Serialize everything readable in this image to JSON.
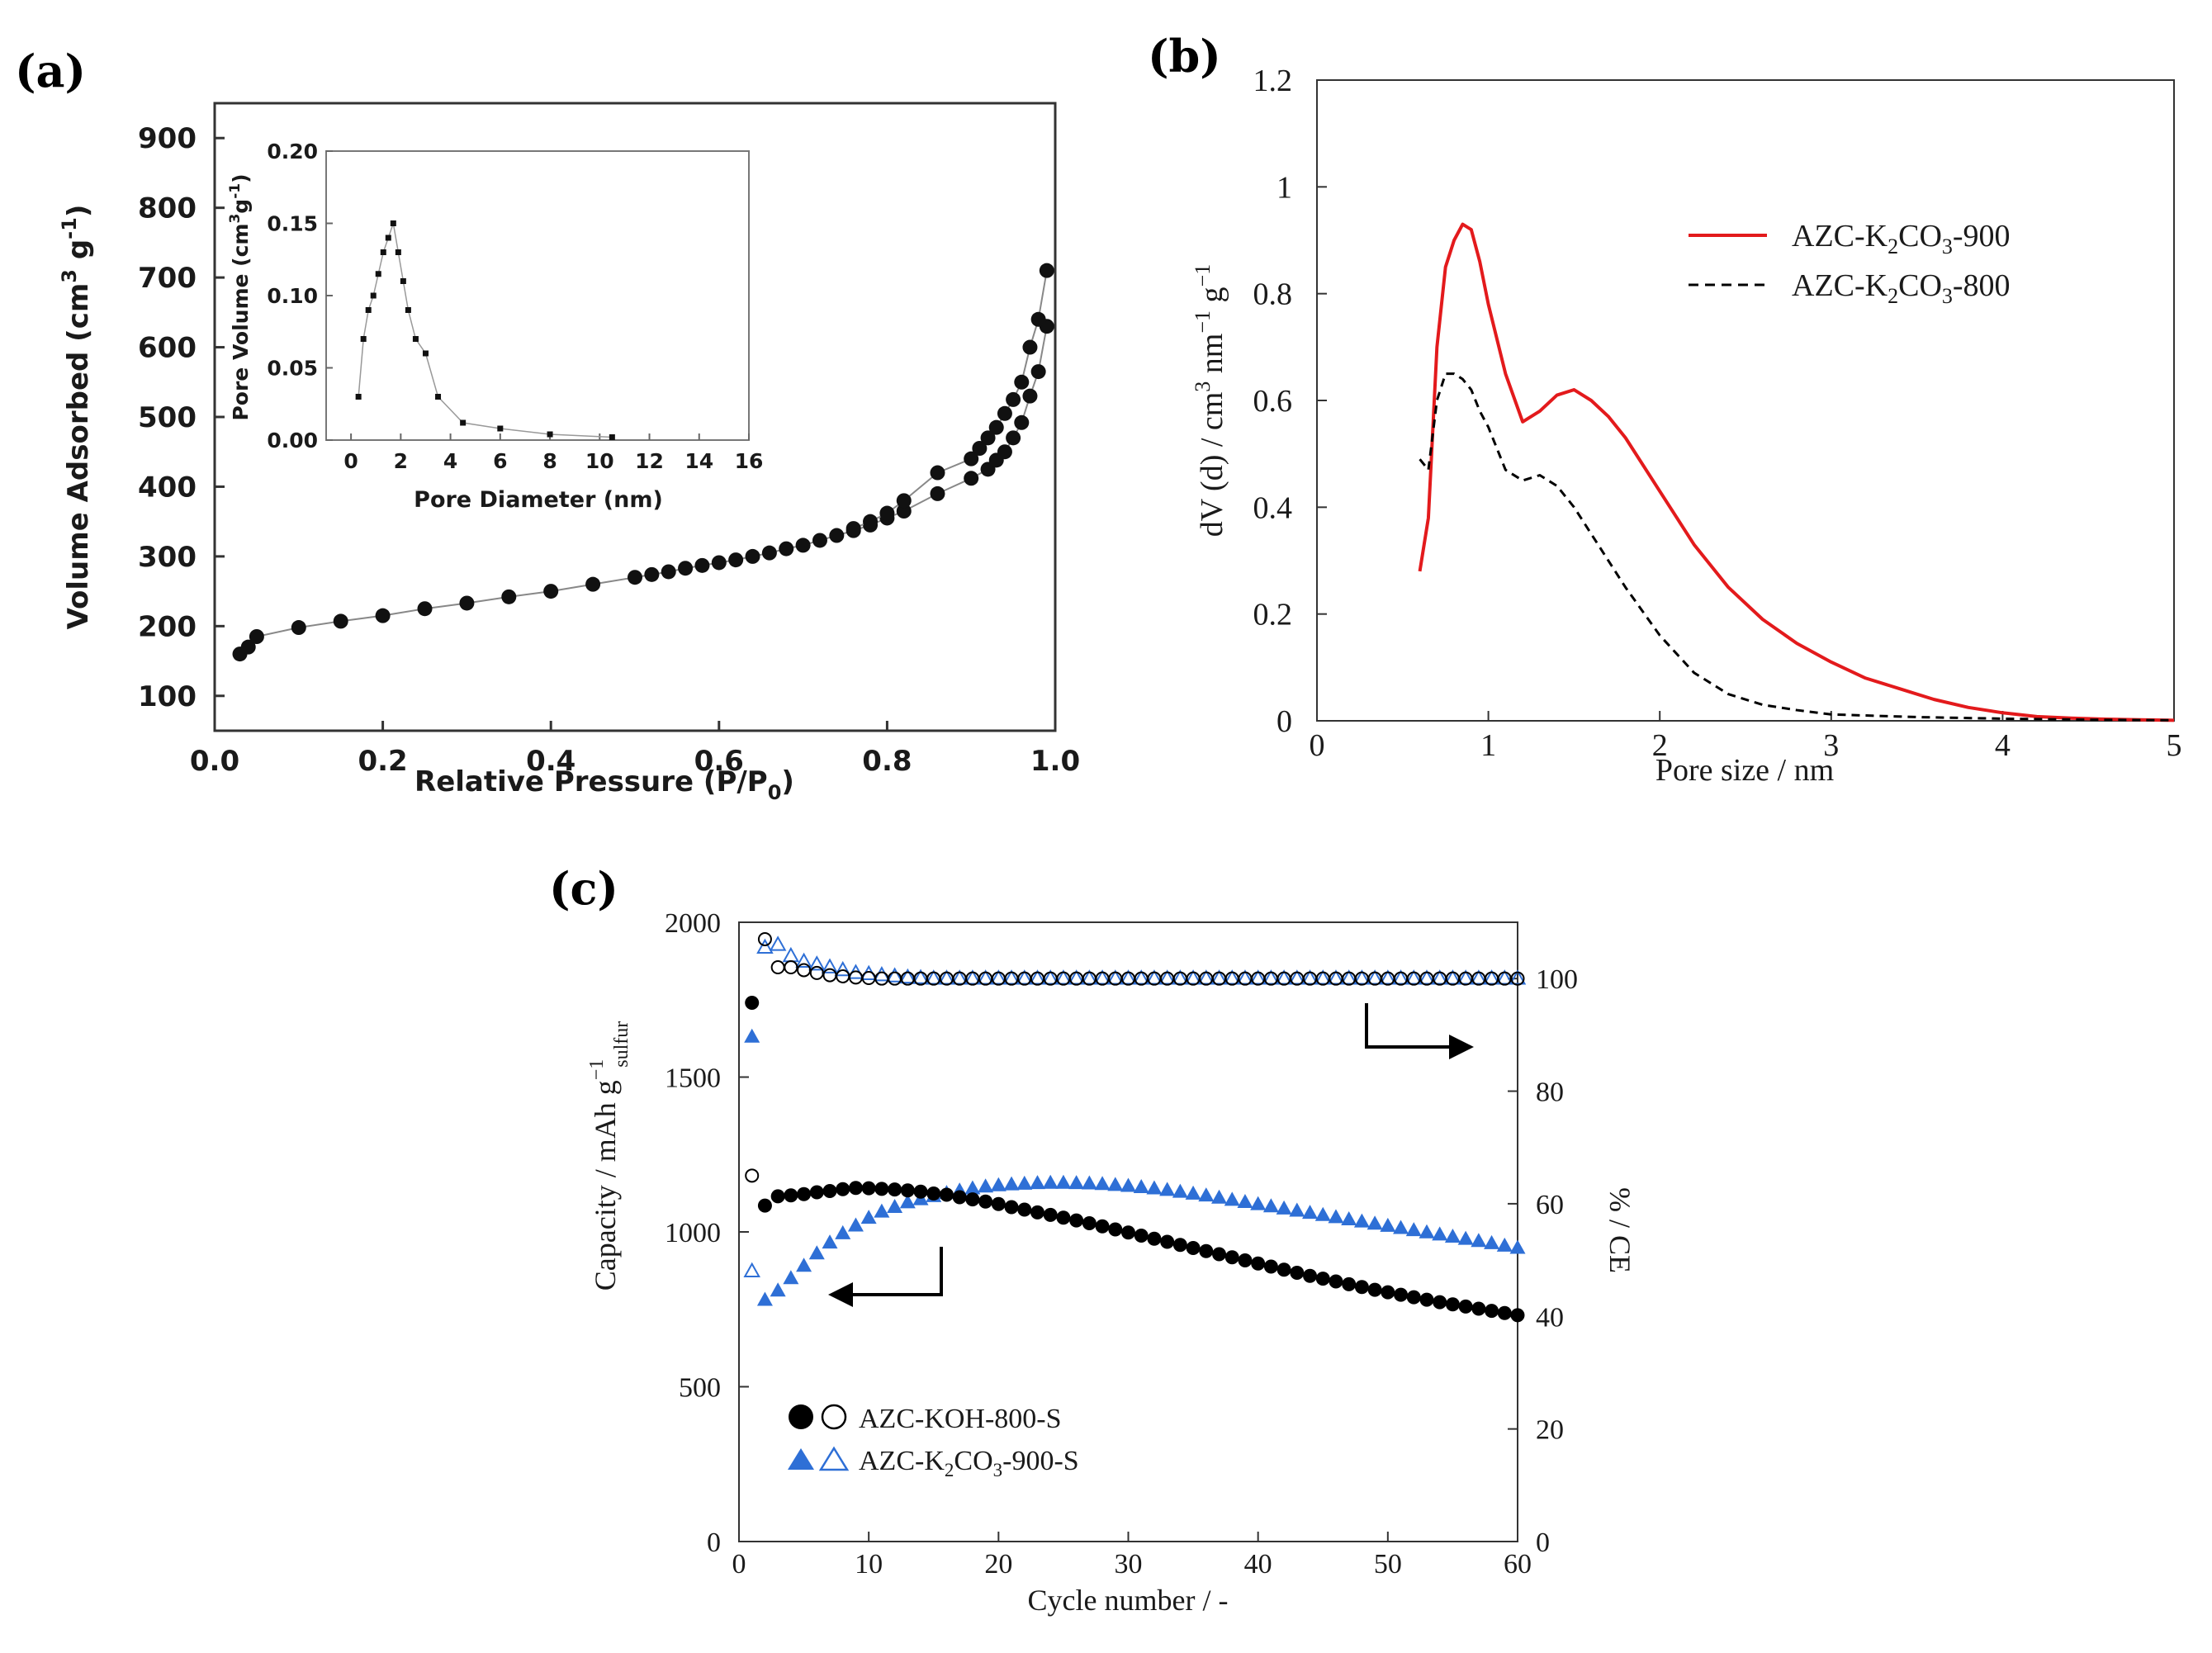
{
  "chart_data": [
    {
      "panel": "(a)",
      "type": "scatter",
      "xlabel": "Relative Pressure (P/P0)",
      "ylabel": "Volume Adsorbed (cm3 g-1)",
      "xlim": [
        0,
        1.0
      ],
      "ylim": [
        50,
        950
      ],
      "xticks": [
        0.0,
        0.2,
        0.4,
        0.6,
        0.8,
        1.0
      ],
      "xtick_labels": [
        "0.0",
        "0.2",
        "0.4",
        "0.6",
        "0.8",
        "1.0"
      ],
      "yticks": [
        100,
        200,
        300,
        400,
        500,
        600,
        700,
        800,
        900
      ],
      "series": [
        {
          "name": "adsorption",
          "x": [
            0.03,
            0.04,
            0.05,
            0.1,
            0.15,
            0.2,
            0.25,
            0.3,
            0.35,
            0.4,
            0.45,
            0.5,
            0.52,
            0.54,
            0.56,
            0.58,
            0.6,
            0.62,
            0.64,
            0.66,
            0.68,
            0.7,
            0.72,
            0.74,
            0.76,
            0.78,
            0.8,
            0.82,
            0.86,
            0.9,
            0.92,
            0.93,
            0.94,
            0.95,
            0.96,
            0.97,
            0.98,
            0.99
          ],
          "y": [
            160,
            170,
            185,
            198,
            207,
            215,
            225,
            233,
            242,
            250,
            260,
            270,
            274,
            278,
            283,
            287,
            291,
            295,
            300,
            305,
            311,
            316,
            323,
            330,
            337,
            345,
            355,
            365,
            390,
            412,
            425,
            438,
            450,
            470,
            492,
            530,
            565,
            630
          ]
        },
        {
          "name": "desorption",
          "x": [
            0.99,
            0.98,
            0.97,
            0.96,
            0.95,
            0.94,
            0.93,
            0.92,
            0.91,
            0.9,
            0.86,
            0.82,
            0.8,
            0.78,
            0.76
          ],
          "y": [
            710,
            640,
            600,
            550,
            525,
            505,
            485,
            470,
            455,
            440,
            420,
            380,
            362,
            350,
            340
          ]
        }
      ],
      "inset": {
        "type": "line",
        "xlabel": "Pore Diameter (nm)",
        "ylabel": "Pore Volume (cm3g-1)",
        "xlim": [
          -1,
          16
        ],
        "ylim": [
          0,
          0.2
        ],
        "xticks": [
          0,
          2,
          4,
          6,
          8,
          10,
          12,
          14,
          16
        ],
        "yticks": [
          0.0,
          0.05,
          0.1,
          0.15,
          0.2
        ],
        "ytick_labels": [
          "0.00",
          "0.05",
          "0.10",
          "0.15",
          "0.20"
        ],
        "x": [
          0.3,
          0.5,
          0.7,
          0.9,
          1.1,
          1.3,
          1.5,
          1.7,
          1.9,
          2.1,
          2.3,
          2.6,
          3.0,
          3.5,
          4.5,
          6.0,
          8.0,
          10.5
        ],
        "y": [
          0.03,
          0.07,
          0.09,
          0.1,
          0.115,
          0.13,
          0.14,
          0.15,
          0.13,
          0.11,
          0.09,
          0.07,
          0.06,
          0.03,
          0.012,
          0.008,
          0.004,
          0.002
        ]
      }
    },
    {
      "panel": "(b)",
      "type": "line",
      "xlabel": "Pore size / nm",
      "ylabel": "dV (d) / cm3 nm-1 g-1",
      "xlim": [
        0,
        5
      ],
      "ylim": [
        0,
        1.2
      ],
      "xticks": [
        0,
        1,
        2,
        3,
        4,
        5
      ],
      "yticks": [
        0,
        0.2,
        0.4,
        0.6,
        0.8,
        1.0,
        1.2
      ],
      "ytick_labels": [
        "0",
        "0.2",
        "0.4",
        "0.6",
        "0.8",
        "1",
        "1.2"
      ],
      "series": [
        {
          "name": "AZC-K2CO3-900",
          "color": "#e31a1c",
          "style": "solid",
          "x": [
            0.6,
            0.65,
            0.7,
            0.75,
            0.8,
            0.85,
            0.9,
            0.95,
            1.0,
            1.1,
            1.2,
            1.3,
            1.4,
            1.5,
            1.6,
            1.7,
            1.8,
            2.0,
            2.2,
            2.4,
            2.6,
            2.8,
            3.0,
            3.2,
            3.4,
            3.6,
            3.8,
            4.0,
            4.2,
            4.4,
            4.6,
            4.8,
            5.0
          ],
          "y": [
            0.28,
            0.38,
            0.7,
            0.85,
            0.9,
            0.93,
            0.92,
            0.86,
            0.78,
            0.65,
            0.56,
            0.58,
            0.61,
            0.62,
            0.6,
            0.57,
            0.53,
            0.43,
            0.33,
            0.25,
            0.19,
            0.145,
            0.11,
            0.08,
            0.06,
            0.04,
            0.025,
            0.015,
            0.008,
            0.005,
            0.003,
            0.002,
            0.001
          ]
        },
        {
          "name": "AZC-K2CO3-800",
          "color": "#000000",
          "style": "dashed",
          "x": [
            0.6,
            0.65,
            0.7,
            0.75,
            0.8,
            0.85,
            0.9,
            0.95,
            1.0,
            1.1,
            1.2,
            1.3,
            1.4,
            1.5,
            1.6,
            1.8,
            2.0,
            2.2,
            2.4,
            2.6,
            2.8,
            3.0,
            3.5,
            4.0,
            4.5,
            5.0
          ],
          "y": [
            0.49,
            0.47,
            0.6,
            0.65,
            0.65,
            0.64,
            0.62,
            0.58,
            0.55,
            0.47,
            0.45,
            0.46,
            0.44,
            0.4,
            0.35,
            0.25,
            0.16,
            0.09,
            0.05,
            0.03,
            0.02,
            0.012,
            0.007,
            0.004,
            0.002,
            0.001
          ]
        }
      ]
    },
    {
      "panel": "(c)",
      "type": "scatter",
      "xlabel": "Cycle number / -",
      "ylabel_left": "Capacity / mAh g-1 sulfur",
      "ylabel_right": "CE / %",
      "xlim": [
        0,
        60
      ],
      "ylim_left": [
        0,
        2000
      ],
      "ylim_right": [
        0,
        110
      ],
      "xticks": [
        0,
        10,
        20,
        30,
        40,
        50,
        60
      ],
      "yticks_left": [
        0,
        500,
        1000,
        1500,
        2000
      ],
      "yticks_right": [
        0,
        20,
        40,
        60,
        80,
        100
      ],
      "capacity_KOH_800_S": [
        1740,
        1085,
        1115,
        1118,
        1122,
        1128,
        1132,
        1138,
        1142,
        1141,
        1139,
        1137,
        1134,
        1130,
        1124,
        1120,
        1112,
        1105,
        1098,
        1090,
        1080,
        1072,
        1063,
        1055,
        1046,
        1037,
        1028,
        1018,
        1008,
        998,
        988,
        978,
        968,
        958,
        948,
        938,
        928,
        918,
        908,
        898,
        888,
        878,
        868,
        858,
        849,
        840,
        831,
        822,
        813,
        805,
        797,
        789,
        781,
        773,
        766,
        759,
        752,
        745,
        738,
        731
      ],
      "capacity_K2CO3_900_S": [
        1630,
        780,
        810,
        850,
        890,
        930,
        965,
        995,
        1020,
        1045,
        1065,
        1080,
        1095,
        1105,
        1115,
        1125,
        1133,
        1140,
        1146,
        1150,
        1153,
        1155,
        1157,
        1158,
        1158,
        1157,
        1156,
        1154,
        1151,
        1148,
        1144,
        1140,
        1135,
        1129,
        1123,
        1117,
        1110,
        1103,
        1096,
        1089,
        1082,
        1075,
        1068,
        1061,
        1054,
        1047,
        1040,
        1033,
        1026,
        1019,
        1012,
        1005,
        998,
        991,
        984,
        977,
        970,
        963,
        955,
        948
      ],
      "CE_KOH_800_S": [
        65,
        107,
        102,
        102,
        101.5,
        101,
        100.6,
        100.4,
        100.2,
        100.1,
        100
      ],
      "CE_K2CO3_900_S": [
        48,
        105.5,
        106,
        104,
        103,
        102.5,
        102,
        101.5,
        101,
        100.8,
        100.6,
        100.4,
        100.2,
        100.1,
        100
      ],
      "CE_steady": 100,
      "legend": [
        "AZC-KOH-800-S",
        "AZC-K2CO3-900-S"
      ]
    }
  ],
  "panel_a": {
    "label": "(a)",
    "xlabel_main": "Relative Pressure (P/P",
    "xlabel_sub": "0",
    "xlabel_close": ")",
    "ylabel_main": "Volume Adsorbed (cm",
    "ylabel_sup": "3",
    "ylabel_mid": " g",
    "ylabel_sup2": "-1",
    "ylabel_close": ")",
    "inset_xlabel": "Pore Diameter (nm)",
    "inset_ylabel_main": "Pore Volume (cm",
    "inset_ylabel_sup": "3",
    "inset_ylabel_mid": "g",
    "inset_ylabel_sup2": "-1",
    "inset_ylabel_close": ")"
  },
  "panel_b": {
    "label": "(b)",
    "xlabel": "Pore size / nm",
    "ylabel_main": "dV (d) / cm",
    "ylabel_sup": "3",
    "ylabel_mid": " nm",
    "ylabel_sup2": "−1",
    "ylabel_end": " g",
    "ylabel_sup3": "−1",
    "legend_900_prefix": "AZC-K",
    "legend_900_sub1": "2",
    "legend_900_mid": "CO",
    "legend_900_sub2": "3",
    "legend_900_suffix": "-900",
    "legend_800_prefix": "AZC-K",
    "legend_800_sub1": "2",
    "legend_800_mid": "CO",
    "legend_800_sub2": "3",
    "legend_800_suffix": "-800"
  },
  "panel_c": {
    "label": "(c)",
    "xlabel": "Cycle number / -",
    "ylabel_left_main": "Capacity / mAh g",
    "ylabel_left_sup": "−1",
    "ylabel_left_sub": "sulfur",
    "ylabel_right": "% / ",
    "ylabel_right_CE": "CE",
    "legend_koh": "AZC-KOH-800-S",
    "legend_k2co3_prefix": "AZC-K",
    "legend_k2co3_sub1": "2",
    "legend_k2co3_mid": "CO",
    "legend_k2co3_sub2": "3",
    "legend_k2co3_suffix": "-900-S"
  },
  "colors": {
    "blue": "#2e6fd6",
    "red": "#e31a1c",
    "black": "#000000",
    "grey_line": "#888888"
  }
}
